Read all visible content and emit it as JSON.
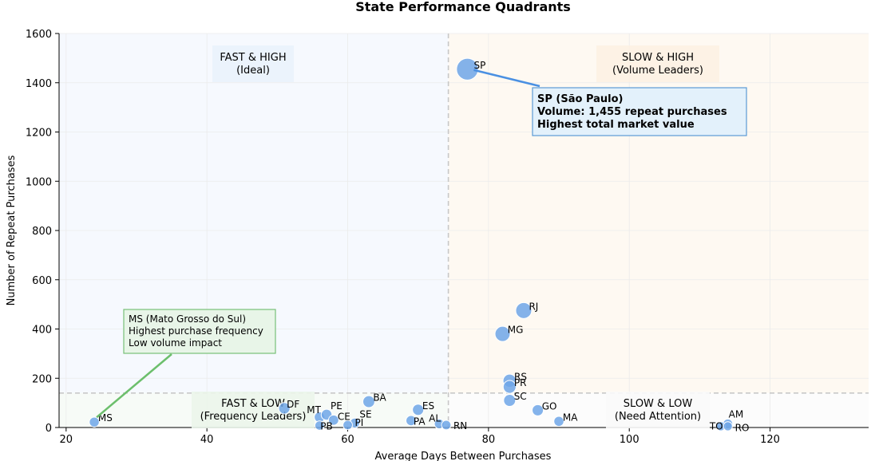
{
  "chart_data": {
    "type": "scatter",
    "title": "State Performance Quadrants",
    "xlabel": "Average Days Between Purchases",
    "ylabel": "Number of Repeat Purchases",
    "xlim": [
      19,
      134
    ],
    "ylim": [
      0,
      1600
    ],
    "xticks": [
      20,
      40,
      60,
      80,
      100,
      120
    ],
    "yticks": [
      0,
      200,
      400,
      600,
      800,
      1000,
      1200,
      1400,
      1600
    ],
    "grid": true,
    "thresholds": {
      "x": 74.3,
      "y": 140
    },
    "colors": {
      "point": "#6ea6e8",
      "quad_fast_high": "#eaf2fc",
      "quad_slow_high": "#fdf1e3",
      "quad_fast_low": "#ebf5ea",
      "quad_slow_low": "#fafafa",
      "threshold": "#c8c8c8",
      "sp_arrow": "#4a90e2",
      "ms_arrow": "#6cbf6c",
      "sp_box_fill": "#e3f1fb",
      "sp_box_border": "#5b9bd5",
      "ms_box_fill": "#e8f5e8",
      "ms_box_border": "#78c078"
    },
    "quadrant_labels": [
      {
        "id": "fast_high",
        "lines": [
          "FAST & HIGH",
          "(Ideal)"
        ]
      },
      {
        "id": "slow_high",
        "lines": [
          "SLOW & HIGH",
          "(Volume Leaders)"
        ]
      },
      {
        "id": "fast_low",
        "lines": [
          "FAST & LOW",
          "(Frequency Leaders)"
        ]
      },
      {
        "id": "slow_low",
        "lines": [
          "SLOW & LOW",
          "(Need Attention)"
        ]
      }
    ],
    "points": [
      {
        "label": "SP",
        "x": 77,
        "y": 1455
      },
      {
        "label": "RJ",
        "x": 85,
        "y": 475
      },
      {
        "label": "MG",
        "x": 82,
        "y": 380
      },
      {
        "label": "RS",
        "x": 83,
        "y": 190
      },
      {
        "label": "PR",
        "x": 83,
        "y": 165
      },
      {
        "label": "SC",
        "x": 83,
        "y": 110
      },
      {
        "label": "GO",
        "x": 87,
        "y": 70
      },
      {
        "label": "MA",
        "x": 90,
        "y": 25
      },
      {
        "label": "BA",
        "x": 63,
        "y": 105
      },
      {
        "label": "ES",
        "x": 70,
        "y": 72
      },
      {
        "label": "DF",
        "x": 51,
        "y": 78
      },
      {
        "label": "MT",
        "x": 56,
        "y": 42
      },
      {
        "label": "PE",
        "x": 57,
        "y": 52
      },
      {
        "label": "CE",
        "x": 58,
        "y": 30
      },
      {
        "label": "SE",
        "x": 61,
        "y": 18
      },
      {
        "label": "PI",
        "x": 60,
        "y": 10
      },
      {
        "label": "PB",
        "x": 56,
        "y": 8
      },
      {
        "label": "PA",
        "x": 69,
        "y": 28
      },
      {
        "label": "AL",
        "x": 73,
        "y": 15
      },
      {
        "label": "RN",
        "x": 74,
        "y": 10
      },
      {
        "label": "MS",
        "x": 24,
        "y": 22
      },
      {
        "label": "AM",
        "x": 114,
        "y": 15
      },
      {
        "label": "TO",
        "x": 113,
        "y": 5
      },
      {
        "label": "RO",
        "x": 114,
        "y": 5
      }
    ],
    "annotations": [
      {
        "id": "sp",
        "target": "SP",
        "lines": [
          "SP (São Paulo)",
          "Volume: 1,455 repeat purchases",
          "Highest total market value"
        ]
      },
      {
        "id": "ms",
        "target": "MS",
        "lines": [
          "MS (Mato Grosso do Sul)",
          "Highest purchase frequency",
          "Low volume impact"
        ]
      }
    ]
  }
}
